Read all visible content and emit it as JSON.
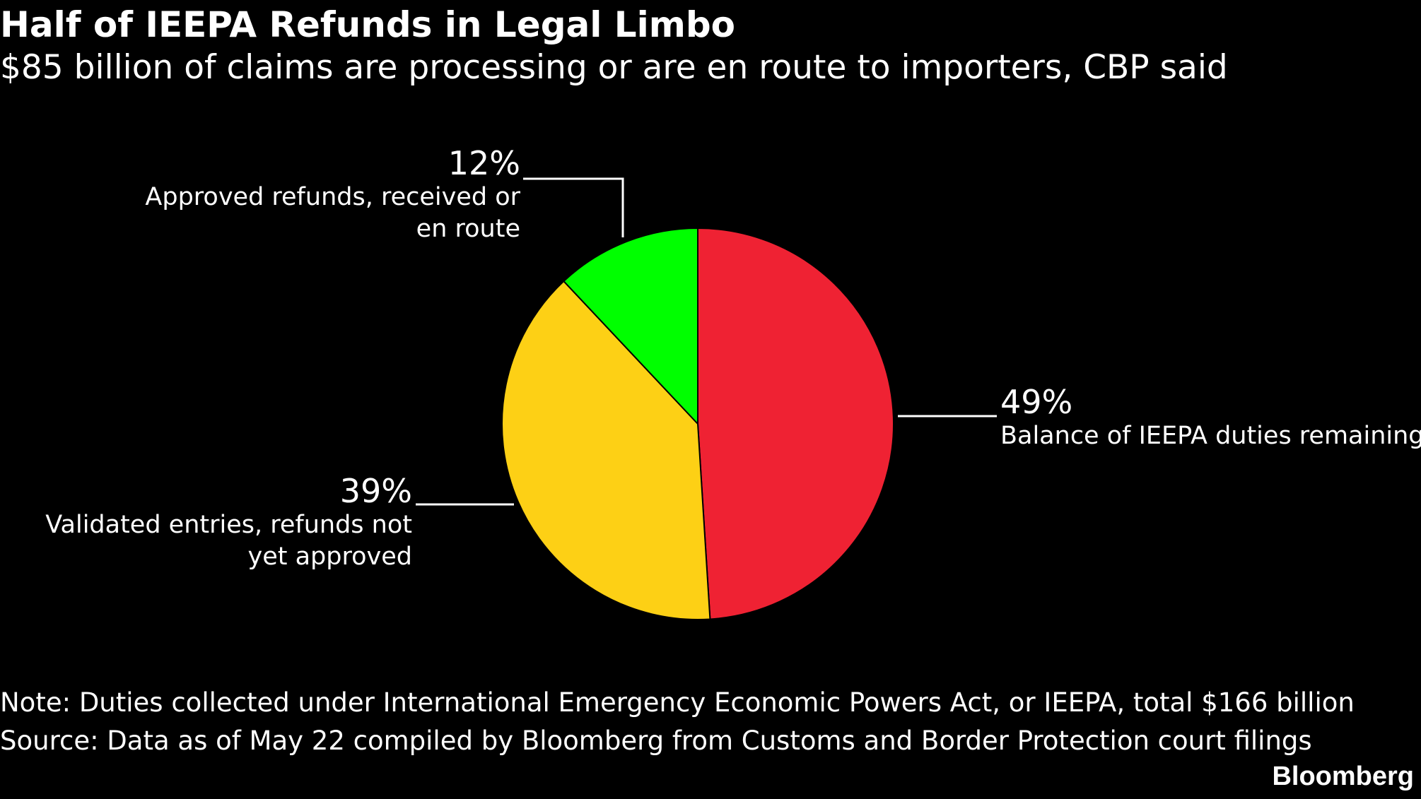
{
  "header": {
    "title": "Half of IEEPA Refunds in Legal Limbo",
    "subtitle": "$85 billion of claims are processing or are en route to importers, CBP said"
  },
  "chart_data": {
    "type": "pie",
    "start_angle_deg": 0,
    "direction": "clockwise",
    "slices": [
      {
        "label": "Balance of IEEPA duties remaining",
        "value": 49,
        "value_label": "49%",
        "color": "#ef2233"
      },
      {
        "label": "Validated entries, refunds not yet approved",
        "value": 39,
        "value_label": "39%",
        "color": "#fdd015"
      },
      {
        "label": "Approved refunds, received or en route",
        "value": 12,
        "value_label": "12%",
        "color": "#00ff00"
      }
    ]
  },
  "footer": {
    "note": "Note: Duties collected under International Emergency Economic Powers Act, or IEEPA, total $166 billion",
    "source": "Source: Data as of May 22 compiled by Bloomberg from Customs and Border Protection court filings",
    "brand": "Bloomberg"
  }
}
